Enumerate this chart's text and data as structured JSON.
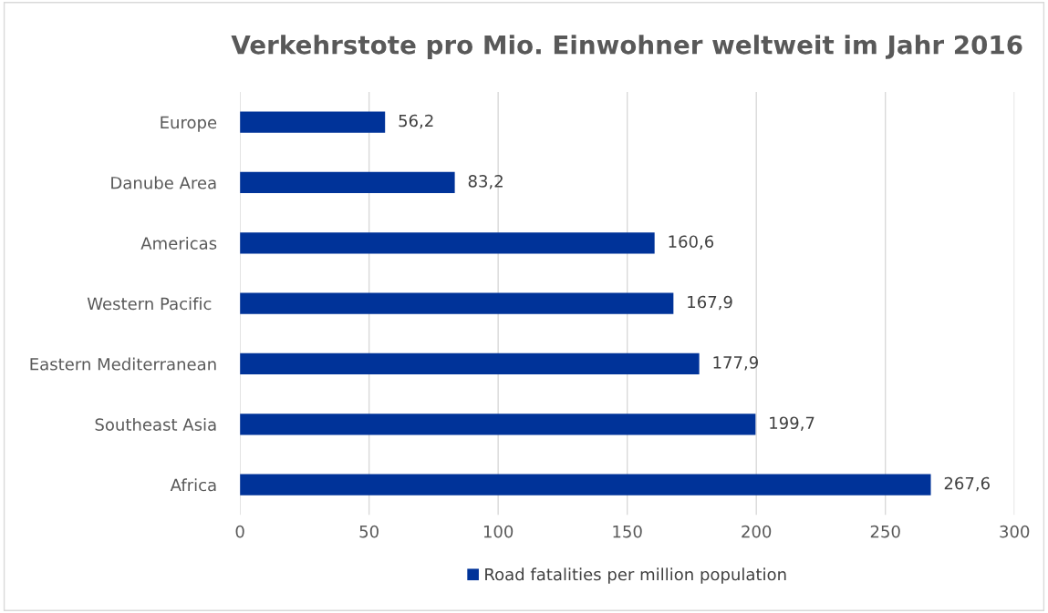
{
  "chart_data": {
    "type": "bar",
    "orientation": "horizontal",
    "title": "Verkehrstote pro Mio. Einwohner weltweit im Jahr 2016",
    "categories": [
      "Europe",
      "Danube Area",
      "Americas",
      "Western Pacific ",
      "Eastern Mediterranean",
      "Southeast Asia",
      "Africa"
    ],
    "series": [
      {
        "name": "Road fatalities per million population",
        "color": "#003399",
        "values": [
          56.2,
          83.2,
          160.6,
          167.9,
          177.9,
          199.7,
          267.6
        ],
        "value_labels": [
          "56,2",
          "83,2",
          "160,6",
          "167,9",
          "177,9",
          "199,7",
          "267,6"
        ]
      }
    ],
    "xlim": [
      0,
      300
    ],
    "xticks": [
      0,
      50,
      100,
      150,
      200,
      250,
      300
    ],
    "grid": "x",
    "legend": "bottom"
  }
}
